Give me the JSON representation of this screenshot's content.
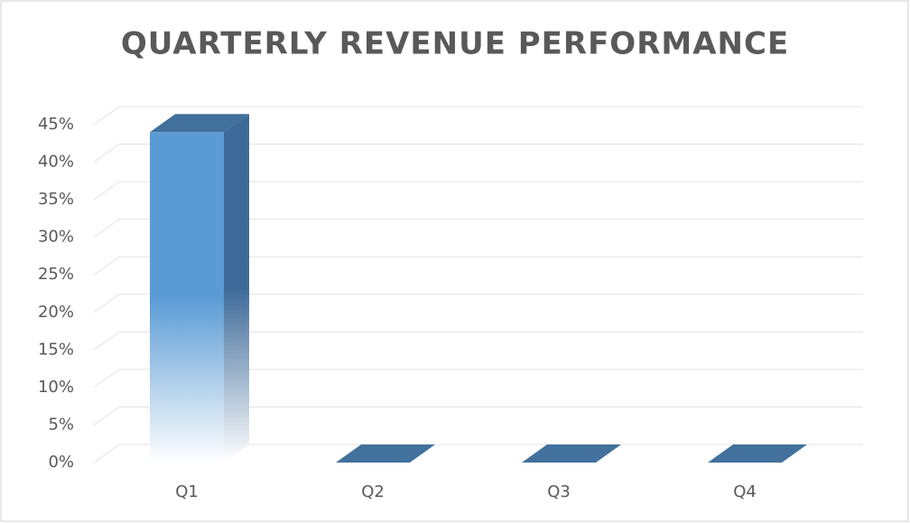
{
  "chart_data": {
    "type": "bar3d",
    "title": "QUARTERLY REVENUE PERFORMANCE",
    "categories": [
      "Q1",
      "Q2",
      "Q3",
      "Q4"
    ],
    "values": [
      44,
      0,
      0,
      0
    ],
    "color": "#4a90d9",
    "ylim": [
      0,
      45
    ],
    "yticks": [
      {
        "value": 0,
        "label": "0%"
      },
      {
        "value": 5,
        "label": "5%"
      },
      {
        "value": 10,
        "label": "10%"
      },
      {
        "value": 15,
        "label": "15%"
      },
      {
        "value": 20,
        "label": "20%"
      },
      {
        "value": 25,
        "label": "25%"
      },
      {
        "value": 30,
        "label": "30%"
      },
      {
        "value": 35,
        "label": "35%"
      },
      {
        "value": 40,
        "label": "40%"
      },
      {
        "value": 45,
        "label": "45%"
      }
    ],
    "grid": true
  }
}
